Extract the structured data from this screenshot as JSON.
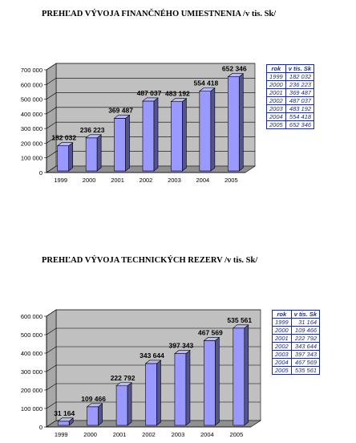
{
  "sections": [
    {
      "title": "PREHĽAD VÝVOJA FINANČNÉHO UMIESTNENIA /v tis. Sk/",
      "table": {
        "headers": [
          "rok",
          "v tis. Sk"
        ],
        "rows": [
          [
            "1999",
            "182 032"
          ],
          [
            "2000",
            "236 223"
          ],
          [
            "2001",
            "369 487"
          ],
          [
            "2002",
            "487 037"
          ],
          [
            "2003",
            "483 192"
          ],
          [
            "2004",
            "554 418"
          ],
          [
            "2005",
            "652 346"
          ]
        ]
      }
    },
    {
      "title": "PREHĽAD VÝVOJA TECHNICKÝCH REZERV /v tis. Sk/",
      "table": {
        "headers": [
          "rok",
          "v tis. Sk"
        ],
        "rows": [
          [
            "1999",
            "31 164"
          ],
          [
            "2000",
            "109 466"
          ],
          [
            "2001",
            "222 792"
          ],
          [
            "2002",
            "343 644"
          ],
          [
            "2003",
            "397 343"
          ],
          [
            "2004",
            "467 569"
          ],
          [
            "2005",
            "535 561"
          ]
        ]
      }
    }
  ],
  "chart_data": [
    {
      "type": "bar",
      "title": "PREHĽAD VÝVOJA FINANČNÉHO UMIESTNENIA /v tis. Sk/",
      "categories": [
        "1999",
        "2000",
        "2001",
        "2002",
        "2003",
        "2004",
        "2005"
      ],
      "values": [
        182032,
        236223,
        369487,
        487037,
        483192,
        554418,
        652346
      ],
      "value_labels": [
        "182 032",
        "236 223",
        "369 487",
        "487 037",
        "483 192",
        "554 418",
        "652 346"
      ],
      "yticks": [
        "0",
        "100 000",
        "200 000",
        "300 000",
        "400 000",
        "500 000",
        "600 000",
        "700 000"
      ],
      "ylim": [
        0,
        700000
      ],
      "grid": true,
      "bar_color": "#9999ff",
      "legend": "table-right"
    },
    {
      "type": "bar",
      "title": "PREHĽAD VÝVOJA TECHNICKÝCH REZERV /v tis. Sk/",
      "categories": [
        "1999",
        "2000",
        "2001",
        "2002",
        "2003",
        "2004",
        "2005"
      ],
      "values": [
        31164,
        109466,
        222792,
        343644,
        397343,
        467569,
        535561
      ],
      "value_labels": [
        "31 164",
        "109 466",
        "222 792",
        "343 644",
        "397 343",
        "467 569",
        "535 561"
      ],
      "yticks": [
        "0",
        "100 000",
        "200 000",
        "300 000",
        "400 000",
        "500 000",
        "600 000"
      ],
      "ylim": [
        0,
        600000
      ],
      "grid": true,
      "bar_color": "#9999ff",
      "legend": "table-right"
    }
  ]
}
